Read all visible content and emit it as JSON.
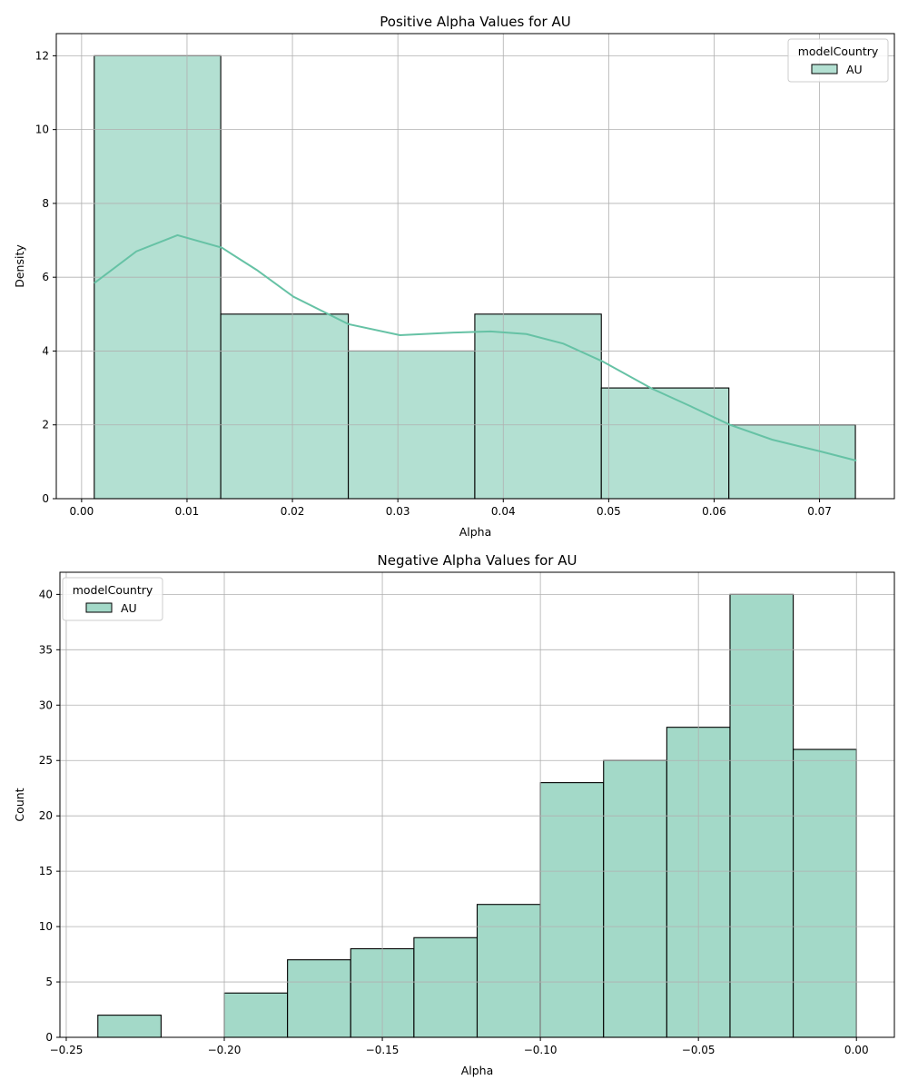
{
  "chart_data": [
    {
      "type": "bar",
      "title": "Positive Alpha Values for AU",
      "xlabel": "Alpha",
      "ylabel": "Density",
      "xlim": [
        -0.0024,
        0.0771
      ],
      "ylim": [
        0,
        12.6
      ],
      "xticks": [
        0.0,
        0.01,
        0.02,
        0.03,
        0.04,
        0.05,
        0.06,
        0.07
      ],
      "xtick_labels": [
        "0.00",
        "0.01",
        "0.02",
        "0.03",
        "0.04",
        "0.05",
        "0.06",
        "0.07"
      ],
      "yticks": [
        0,
        2,
        4,
        6,
        8,
        10,
        12
      ],
      "ytick_labels": [
        "0",
        "2",
        "4",
        "6",
        "8",
        "10",
        "12"
      ],
      "grid": true,
      "bin_edges": [
        0.0012,
        0.0132,
        0.0253,
        0.0373,
        0.0493,
        0.0614,
        0.0734
      ],
      "values": [
        12,
        5,
        4,
        5,
        3,
        2
      ],
      "kde": {
        "x": [
          0.0012,
          0.0052,
          0.0091,
          0.0133,
          0.0166,
          0.0201,
          0.0253,
          0.0302,
          0.0353,
          0.0388,
          0.0422,
          0.0457,
          0.0494,
          0.0541,
          0.0578,
          0.0615,
          0.0655,
          0.0701,
          0.0735
        ],
        "y": [
          5.84,
          6.7,
          7.14,
          6.8,
          6.2,
          5.47,
          4.73,
          4.43,
          4.5,
          4.53,
          4.46,
          4.2,
          3.72,
          2.98,
          2.5,
          2.0,
          1.6,
          1.28,
          1.03
        ]
      },
      "legend": {
        "title": "modelCountry",
        "entries": [
          "AU"
        ],
        "placement": "top-right"
      },
      "bar_color": "#b3e0d2",
      "line_color": "#66c2a5"
    },
    {
      "type": "bar",
      "title": "Negative Alpha Values for AU",
      "xlabel": "Alpha",
      "ylabel": "Count",
      "xlim": [
        -0.252,
        0.012
      ],
      "ylim": [
        0,
        42
      ],
      "xticks": [
        -0.25,
        -0.2,
        -0.15,
        -0.1,
        -0.05,
        0.0
      ],
      "xtick_labels": [
        "−0.25",
        "−0.20",
        "−0.15",
        "−0.10",
        "−0.05",
        "0.00"
      ],
      "yticks": [
        0,
        5,
        10,
        15,
        20,
        25,
        30,
        35,
        40
      ],
      "ytick_labels": [
        "0",
        "5",
        "10",
        "15",
        "20",
        "25",
        "30",
        "35",
        "40"
      ],
      "grid": true,
      "bin_edges": [
        -0.24,
        -0.22,
        -0.2,
        -0.18,
        -0.16,
        -0.14,
        -0.12,
        -0.1,
        -0.08,
        -0.06,
        -0.04,
        -0.02,
        0.0
      ],
      "values": [
        2,
        0,
        4,
        7,
        8,
        9,
        12,
        23,
        25,
        28,
        40,
        26
      ],
      "legend": {
        "title": "modelCountry",
        "entries": [
          "AU"
        ],
        "placement": "top-left"
      },
      "bar_color": "#a3d9c8"
    }
  ]
}
